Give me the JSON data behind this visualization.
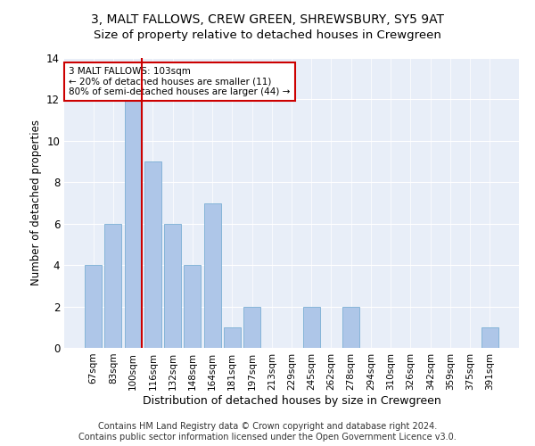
{
  "title": "3, MALT FALLOWS, CREW GREEN, SHREWSBURY, SY5 9AT",
  "subtitle": "Size of property relative to detached houses in Crewgreen",
  "xlabel": "Distribution of detached houses by size in Crewgreen",
  "ylabel": "Number of detached properties",
  "categories": [
    "67sqm",
    "83sqm",
    "100sqm",
    "116sqm",
    "132sqm",
    "148sqm",
    "164sqm",
    "181sqm",
    "197sqm",
    "213sqm",
    "229sqm",
    "245sqm",
    "262sqm",
    "278sqm",
    "294sqm",
    "310sqm",
    "326sqm",
    "342sqm",
    "359sqm",
    "375sqm",
    "391sqm"
  ],
  "values": [
    4,
    6,
    12,
    9,
    6,
    4,
    7,
    1,
    2,
    0,
    0,
    2,
    0,
    2,
    0,
    0,
    0,
    0,
    0,
    0,
    1
  ],
  "bar_color": "#aec6e8",
  "bar_edge_color": "#7aafd4",
  "subject_line_color": "#cc0000",
  "annotation_text": "3 MALT FALLOWS: 103sqm\n← 20% of detached houses are smaller (11)\n80% of semi-detached houses are larger (44) →",
  "annotation_box_color": "#cc0000",
  "ylim": [
    0,
    14
  ],
  "yticks": [
    0,
    2,
    4,
    6,
    8,
    10,
    12,
    14
  ],
  "background_color": "#e8eef8",
  "footer_line1": "Contains HM Land Registry data © Crown copyright and database right 2024.",
  "footer_line2": "Contains public sector information licensed under the Open Government Licence v3.0.",
  "title_fontsize": 10,
  "subtitle_fontsize": 9.5,
  "xlabel_fontsize": 9,
  "ylabel_fontsize": 8.5,
  "tick_fontsize": 7.5,
  "footer_fontsize": 7
}
